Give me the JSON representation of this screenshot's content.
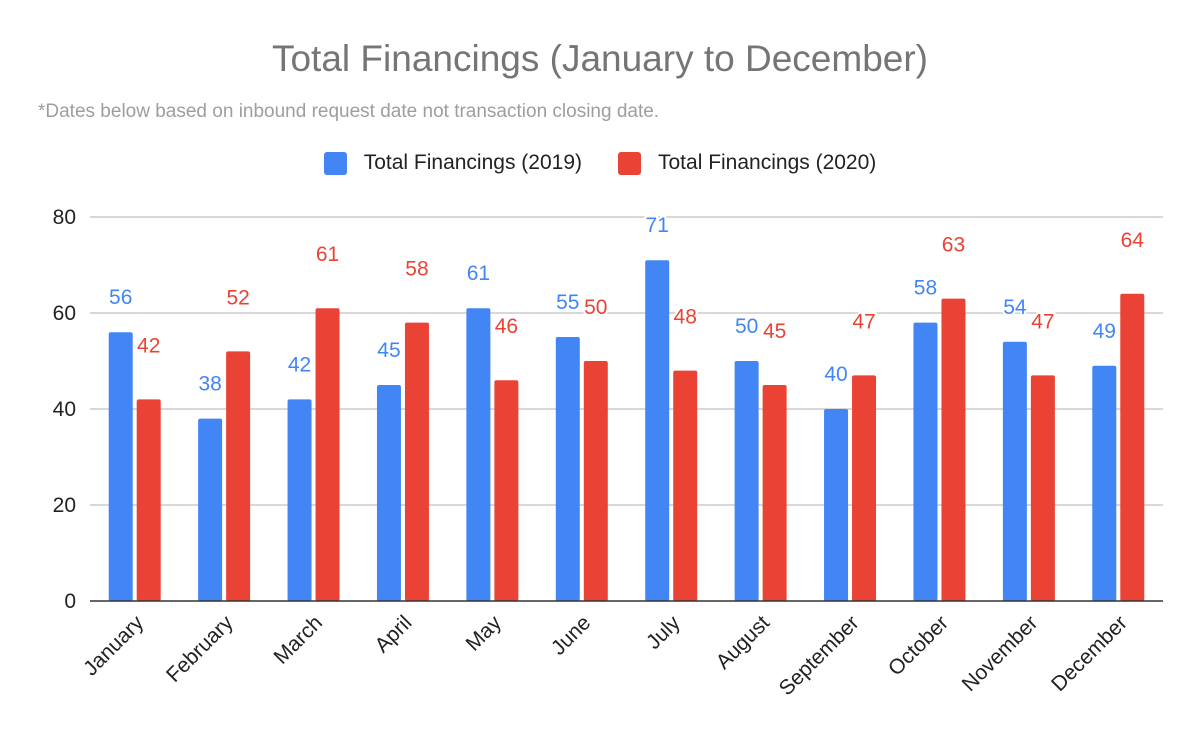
{
  "chart_data": {
    "type": "bar",
    "title": "Total Financings (January to December)",
    "subtitle": "*Dates below based on inbound request date not transaction closing date.",
    "categories": [
      "January",
      "February",
      "March",
      "April",
      "May",
      "June",
      "July",
      "August",
      "September",
      "October",
      "November",
      "December"
    ],
    "series": [
      {
        "name": "Total Financings (2019)",
        "color": "#4285f4",
        "values": [
          56,
          38,
          42,
          45,
          61,
          55,
          71,
          50,
          40,
          58,
          54,
          49
        ]
      },
      {
        "name": "Total Financings (2020)",
        "color": "#ea4335",
        "values": [
          42,
          52,
          61,
          58,
          46,
          50,
          48,
          45,
          47,
          63,
          47,
          64
        ]
      }
    ],
    "ylim": [
      0,
      80
    ],
    "yticks": [
      "0",
      "20",
      "40",
      "60",
      "80"
    ],
    "xlabel": "",
    "ylabel": "",
    "grid": true,
    "legend_position": "top",
    "data_labels": true
  }
}
